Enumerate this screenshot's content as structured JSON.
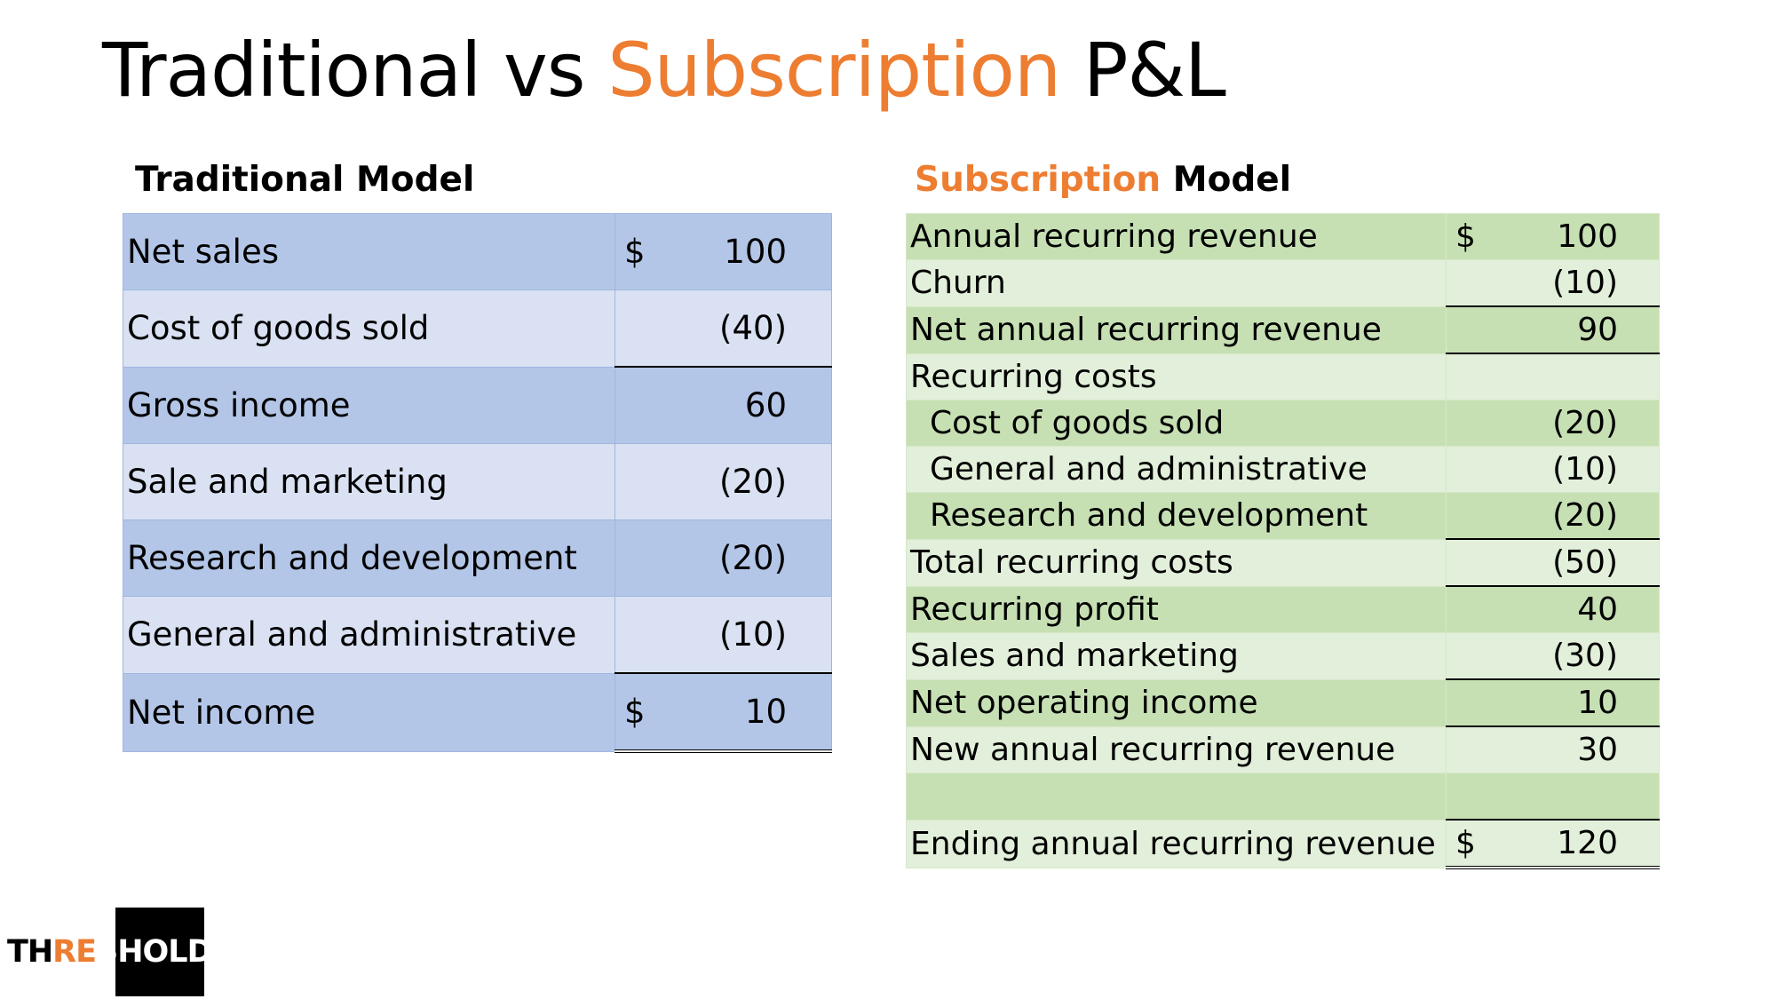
{
  "title": {
    "parts": [
      "Traditional vs",
      "Subscription",
      "P&L"
    ]
  },
  "traditional": {
    "heading": "Traditional Model",
    "rows": [
      {
        "label": "Net sales",
        "currency": "$",
        "value": "100"
      },
      {
        "label": "Cost of goods sold",
        "value": "(40)"
      },
      {
        "label": "Gross income",
        "value": "60",
        "subtotal": true
      },
      {
        "label": "Sale and marketing",
        "value": "(20)"
      },
      {
        "label": "Research and development",
        "value": "(20)"
      },
      {
        "label": "General and administrative",
        "value": "(10)"
      },
      {
        "label": "Net income",
        "currency": "$",
        "value": "10",
        "subtotal": true,
        "final": true
      }
    ]
  },
  "subscription": {
    "heading": [
      "Subscription",
      "Model"
    ],
    "rows": [
      {
        "label": "Annual recurring revenue",
        "currency": "$",
        "value": "100"
      },
      {
        "label": "Churn",
        "value": "(10)"
      },
      {
        "label": "Net annual recurring revenue",
        "value": "90",
        "subtotal": true
      },
      {
        "label": "Recurring costs",
        "subtotal": true
      },
      {
        "label": "Cost of goods sold",
        "value": "(20)",
        "indent": true
      },
      {
        "label": "General and administrative",
        "value": "(10)",
        "indent": true
      },
      {
        "label": "Research and development",
        "value": "(20)",
        "indent": true
      },
      {
        "label": "Total recurring costs",
        "value": "(50)",
        "subtotal": true
      },
      {
        "label": "Recurring profit",
        "value": "40",
        "subtotal": true
      },
      {
        "label": "Sales and marketing",
        "value": "(30)"
      },
      {
        "label": "Net operating income",
        "value": "10",
        "subtotal": true
      },
      {
        "label": "New annual recurring revenue",
        "value": "30",
        "subtotal": true
      }
    ],
    "ending_row": {
      "label": "Ending annual recurring revenue",
      "currency": "$",
      "value": "120",
      "subtotal": true,
      "final": true
    }
  },
  "logo": {
    "parts": [
      "TH",
      "RE",
      "SHOLD"
    ]
  }
}
